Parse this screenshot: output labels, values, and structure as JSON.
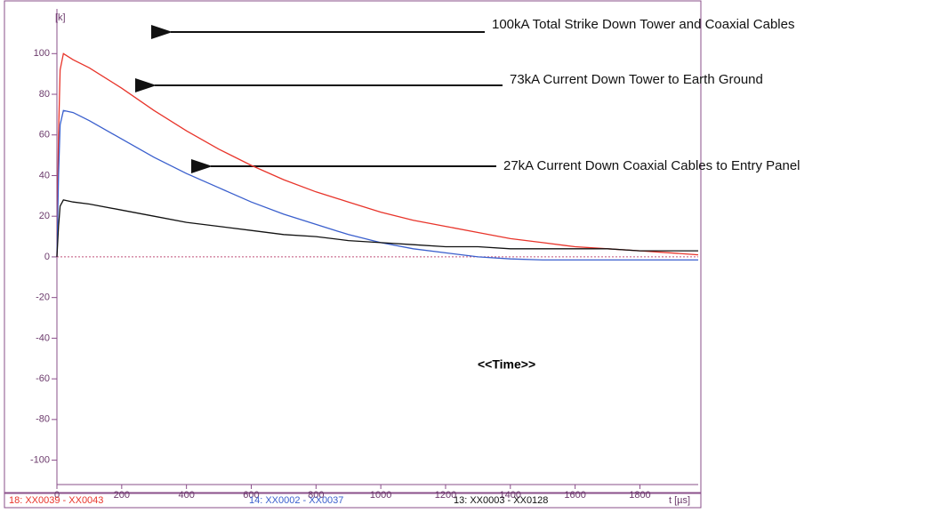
{
  "chart_data": {
    "type": "line",
    "y_unit": "[k]",
    "x_unit": "t [µs]",
    "annotations": [
      "100kA Total Strike Down Tower and Coaxial Cables",
      "73kA Current Down Tower to Earth Ground",
      "27kA Current Down Coaxial Cables to Entry Panel",
      "<<Time>>"
    ],
    "x": [
      0,
      5,
      10,
      20,
      50,
      100,
      200,
      300,
      400,
      500,
      600,
      700,
      800,
      900,
      1000,
      1100,
      1200,
      1300,
      1400,
      1500,
      1600,
      1700,
      1800,
      1980
    ],
    "series": [
      {
        "name": "18: XX0039 - XX0043",
        "color": "#e8342a",
        "values": [
          0,
          60,
          92,
          100,
          97,
          93,
          83,
          72,
          62,
          53,
          45,
          38,
          32,
          27,
          22,
          18,
          15,
          12,
          9,
          7,
          5,
          4,
          3,
          1
        ]
      },
      {
        "name": "14: XX0002 - XX0037",
        "color": "#3a5fcd",
        "values": [
          0,
          40,
          65,
          72,
          71,
          67,
          58,
          49,
          41,
          34,
          27,
          21,
          16,
          11,
          7,
          4,
          2,
          0,
          -1,
          -1.5,
          -1.5,
          -1.5,
          -1.5,
          -1.5
        ]
      },
      {
        "name": "13: XX0003 - XX0128",
        "color": "#111111",
        "values": [
          0,
          15,
          25,
          28,
          27,
          26,
          23,
          20,
          17,
          15,
          13,
          11,
          10,
          8,
          7,
          6,
          5,
          5,
          4,
          4,
          4,
          4,
          3,
          3
        ]
      }
    ],
    "xlim": [
      0,
      1980
    ],
    "ylim": [
      -112,
      122
    ],
    "xticks": [
      0,
      200,
      400,
      600,
      800,
      1000,
      1200,
      1400,
      1600,
      1800
    ],
    "yticks": [
      -100,
      -80,
      -60,
      -40,
      -20,
      0,
      20,
      40,
      60,
      80,
      100
    ]
  }
}
